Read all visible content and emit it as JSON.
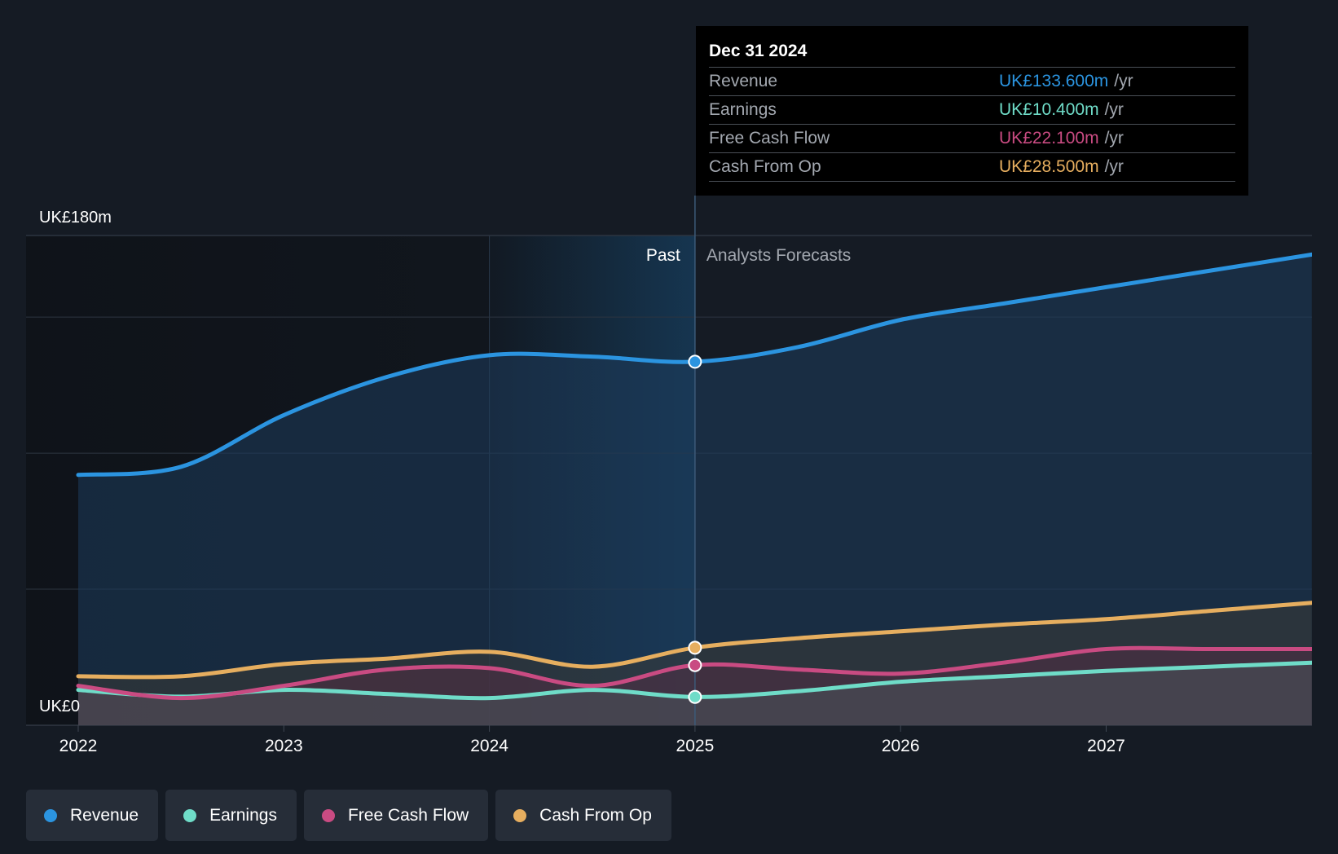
{
  "chart_data": {
    "type": "area",
    "title": "",
    "y_unit": "UK£m",
    "ylim": [
      0,
      180
    ],
    "xlim": [
      2022.0,
      2028.0
    ],
    "y_axis_labels": {
      "top": "UK£180m",
      "bottom": "UK£0"
    },
    "x_ticks": [
      {
        "value": 2022,
        "label": "2022"
      },
      {
        "value": 2023,
        "label": "2023"
      },
      {
        "value": 2024,
        "label": "2024"
      },
      {
        "value": 2025,
        "label": "2025"
      },
      {
        "value": 2026,
        "label": "2026"
      },
      {
        "value": 2027,
        "label": "2027"
      }
    ],
    "gridlines_y": [
      0,
      50,
      100,
      150,
      180
    ],
    "past_label": "Past",
    "forecast_label": "Analysts Forecasts",
    "past_end": 2025.0,
    "highlight_start": 2024.0,
    "series": [
      {
        "name": "Revenue",
        "color": "#2b94e0",
        "points": [
          [
            2022.0,
            92
          ],
          [
            2022.5,
            95
          ],
          [
            2023.0,
            114
          ],
          [
            2023.5,
            128
          ],
          [
            2024.0,
            136
          ],
          [
            2024.5,
            135.5
          ],
          [
            2025.0,
            133.6
          ],
          [
            2025.5,
            139
          ],
          [
            2026.0,
            149
          ],
          [
            2026.5,
            155
          ],
          [
            2027.0,
            161
          ],
          [
            2027.5,
            167
          ],
          [
            2028.0,
            173
          ]
        ]
      },
      {
        "name": "Earnings",
        "color": "#6fdcc8",
        "points": [
          [
            2022.0,
            13
          ],
          [
            2022.5,
            10.5
          ],
          [
            2023.0,
            13
          ],
          [
            2023.5,
            11.5
          ],
          [
            2024.0,
            10
          ],
          [
            2024.5,
            13
          ],
          [
            2025.0,
            10.4
          ],
          [
            2025.5,
            12.5
          ],
          [
            2026.0,
            16
          ],
          [
            2026.5,
            18
          ],
          [
            2027.0,
            20
          ],
          [
            2027.5,
            21.5
          ],
          [
            2028.0,
            23
          ]
        ]
      },
      {
        "name": "Free Cash Flow",
        "color": "#c94b82",
        "points": [
          [
            2022.0,
            14.5
          ],
          [
            2022.5,
            10
          ],
          [
            2023.0,
            14.5
          ],
          [
            2023.5,
            20.5
          ],
          [
            2024.0,
            21
          ],
          [
            2024.5,
            14.5
          ],
          [
            2025.0,
            22.1
          ],
          [
            2025.5,
            20.5
          ],
          [
            2026.0,
            19
          ],
          [
            2026.5,
            23
          ],
          [
            2027.0,
            28
          ],
          [
            2027.5,
            28
          ],
          [
            2028.0,
            28
          ]
        ]
      },
      {
        "name": "Cash From Op",
        "color": "#e6ae5f",
        "points": [
          [
            2022.0,
            18
          ],
          [
            2022.5,
            18
          ],
          [
            2023.0,
            22.5
          ],
          [
            2023.5,
            24.5
          ],
          [
            2024.0,
            27
          ],
          [
            2024.5,
            21.5
          ],
          [
            2025.0,
            28.5
          ],
          [
            2025.5,
            32
          ],
          [
            2026.0,
            34.5
          ],
          [
            2026.5,
            37
          ],
          [
            2027.0,
            39
          ],
          [
            2027.5,
            42
          ],
          [
            2028.0,
            45
          ]
        ]
      }
    ],
    "tooltip": {
      "date": "Dec 31 2024",
      "x": 2025.0,
      "unit": "/yr",
      "rows": [
        {
          "name": "Revenue",
          "value": "UK£133.600m",
          "color": "#2b94e0"
        },
        {
          "name": "Earnings",
          "value": "UK£10.400m",
          "color": "#6fdcc8"
        },
        {
          "name": "Free Cash Flow",
          "value": "UK£22.100m",
          "color": "#c94b82"
        },
        {
          "name": "Cash From Op",
          "value": "UK£28.500m",
          "color": "#e6ae5f"
        }
      ]
    },
    "legend": [
      {
        "name": "Revenue",
        "color": "#2b94e0"
      },
      {
        "name": "Earnings",
        "color": "#6fdcc8"
      },
      {
        "name": "Free Cash Flow",
        "color": "#c94b82"
      },
      {
        "name": "Cash From Op",
        "color": "#e6ae5f"
      }
    ]
  }
}
